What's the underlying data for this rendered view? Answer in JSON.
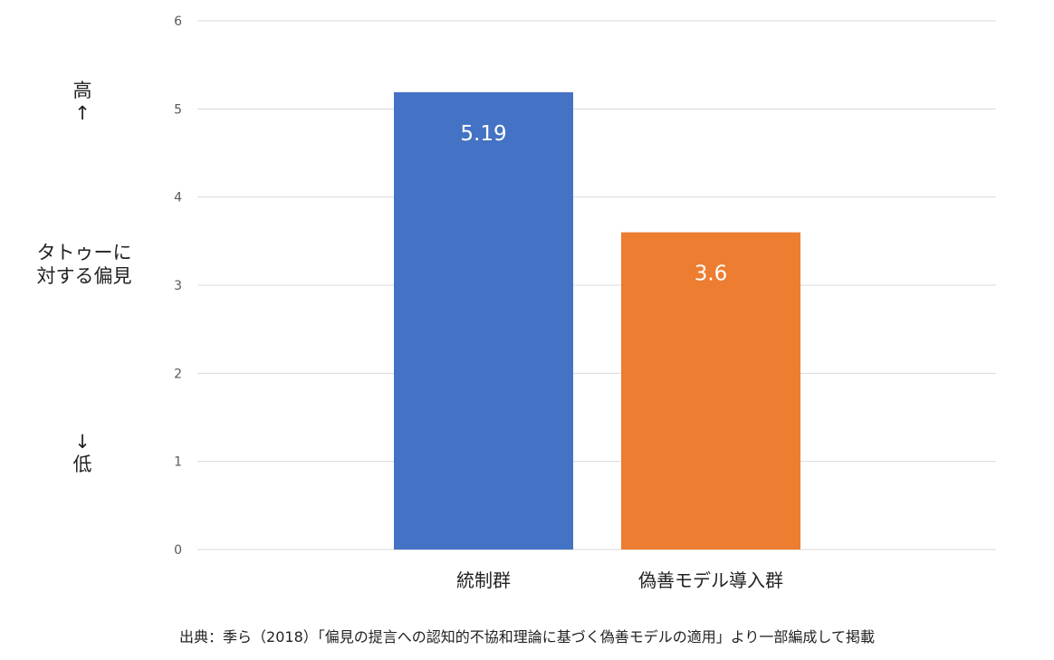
{
  "colors": {
    "gridline": "#d9d9d9",
    "tick_text": "#595959",
    "label_text": "#222222",
    "value_label_text": "#ffffff"
  },
  "y_annotation": {
    "high": "高",
    "up_arrow": "↑",
    "label_line1": "タトゥーに",
    "label_line2": "対する偏見",
    "down_arrow": "↓",
    "low": "低"
  },
  "chart_data": {
    "type": "bar",
    "categories": [
      "統制群",
      "偽善モデル導入群"
    ],
    "values": [
      5.19,
      3.6
    ],
    "value_labels": [
      "5.19",
      "3.6"
    ],
    "colors": [
      "#4472c4",
      "#ed7d31"
    ],
    "ylim": [
      0,
      6
    ],
    "yticks": [
      0,
      1,
      2,
      3,
      4,
      5,
      6
    ],
    "grid": true,
    "title": "",
    "xlabel": "",
    "ylabel": "タトゥーに対する偏見"
  },
  "source_note": "出典：季ら（2018）「偏見の提言への認知的不協和理論に基づく偽善モデルの適用」より一部編成して掲載"
}
